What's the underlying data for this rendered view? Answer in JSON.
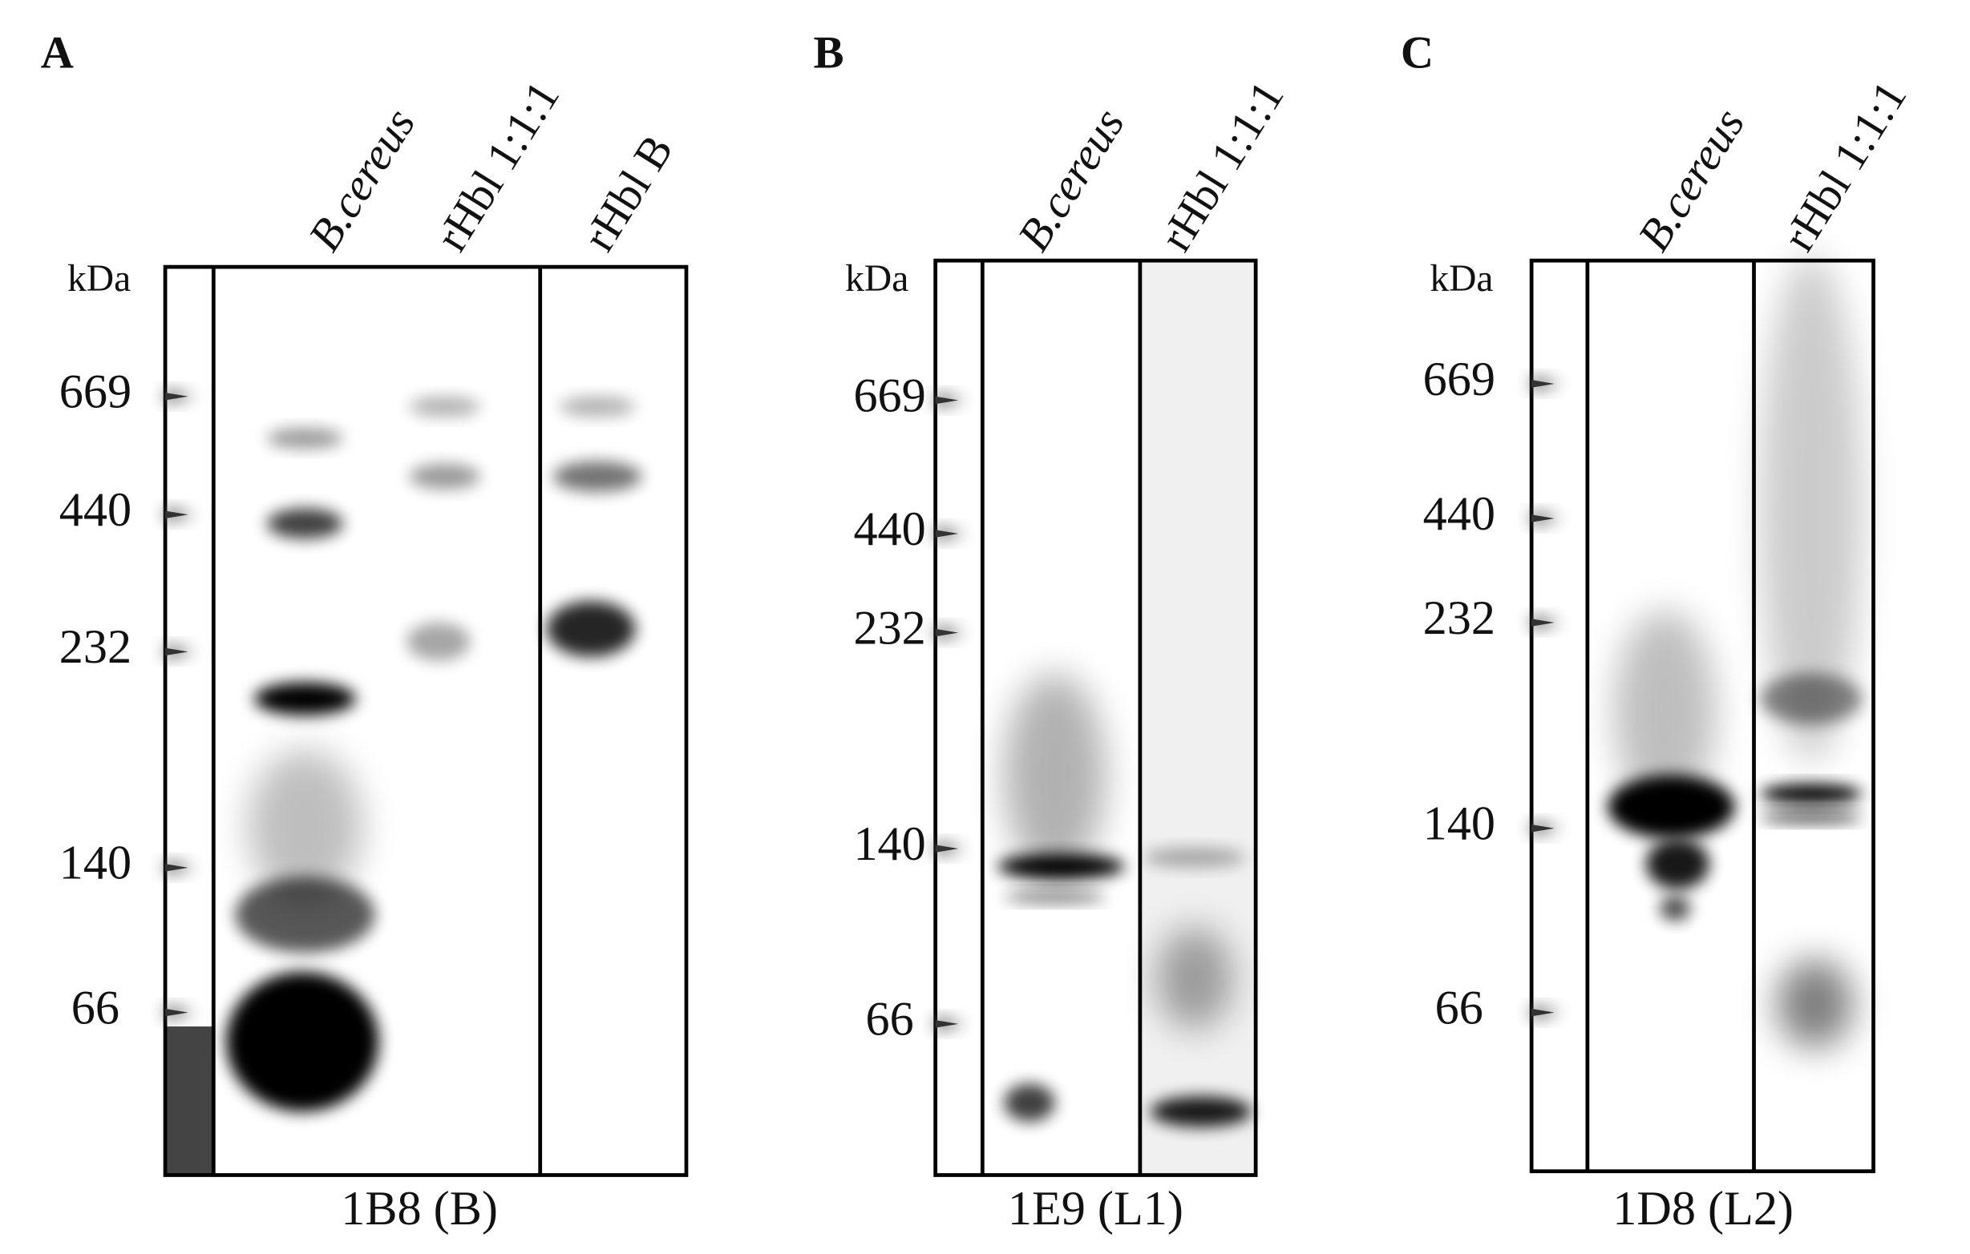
{
  "panels": [
    {
      "label": "A",
      "unit": "kDa",
      "markers": [
        "669",
        "440",
        "232",
        "140",
        "66"
      ],
      "lanes": [
        "B.cereus",
        "rHbl 1:1:1",
        "rHbl B"
      ],
      "caption": "1B8 (B)"
    },
    {
      "label": "B",
      "unit": "kDa",
      "markers": [
        "669",
        "440",
        "232",
        "140",
        "66"
      ],
      "lanes": [
        "B.cereus",
        "rHbl 1:1:1"
      ],
      "caption": "1E9 (L1)"
    },
    {
      "label": "C",
      "unit": "kDa",
      "markers": [
        "669",
        "440",
        "232",
        "140",
        "66"
      ],
      "lanes": [
        "B.cereus",
        "rHbl 1:1:1"
      ],
      "caption": "1D8 (L2)"
    }
  ]
}
